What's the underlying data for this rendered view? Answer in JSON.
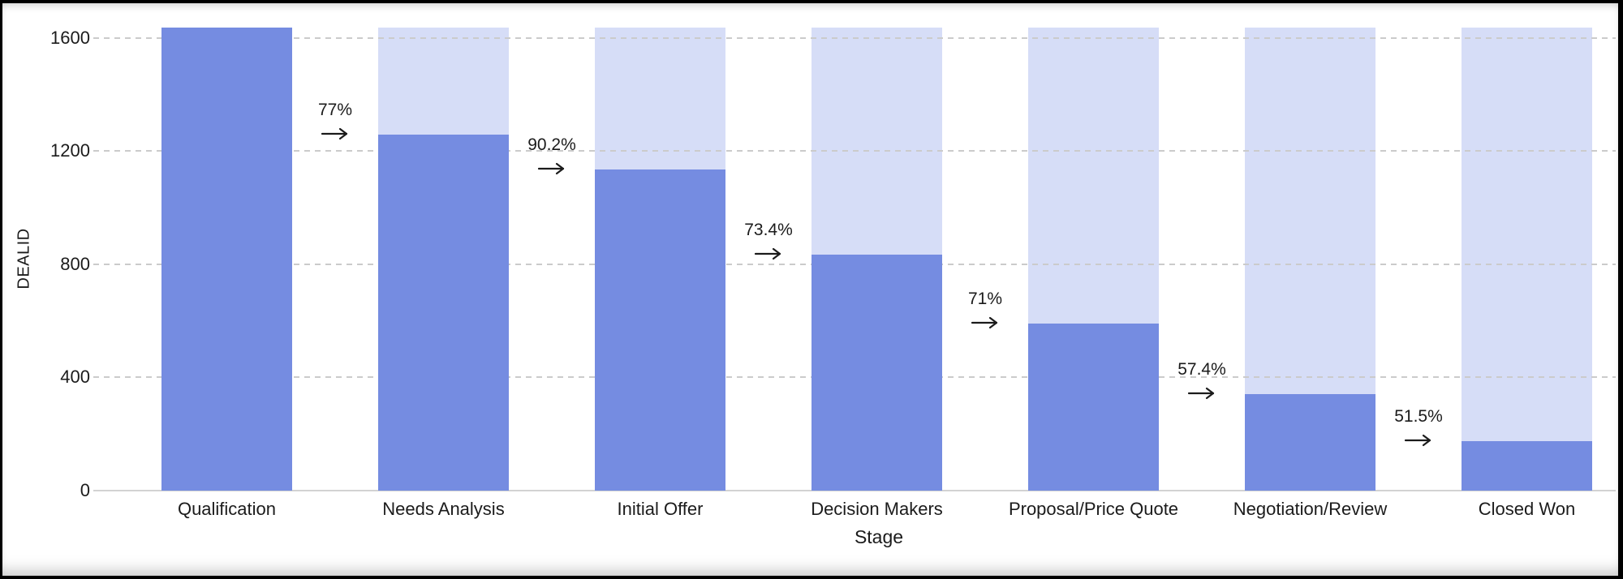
{
  "chart_data": {
    "type": "bar",
    "subtype": "funnel",
    "title": "",
    "xlabel": "Stage",
    "ylabel": "DEALID",
    "categories": [
      "Qualification",
      "Needs Analysis",
      "Initial Offer",
      "Decision Makers",
      "Proposal/Price Quote",
      "Negotiation/Review",
      "Closed Won"
    ],
    "values": [
      1637,
      1260,
      1136,
      834,
      592,
      340,
      175
    ],
    "background_max": 1637,
    "conversion_labels": [
      "77%",
      "90.2%",
      "73.4%",
      "71%",
      "57.4%",
      "51.5%"
    ],
    "arrow_glyph": "→",
    "yticks": [
      "0",
      "400",
      "800",
      "1200",
      "1600"
    ],
    "ytick_values": [
      0,
      400,
      800,
      1200,
      1600
    ],
    "ylim": [
      0,
      1648
    ],
    "grid": "horizontal-dashed",
    "legend": "none",
    "colors": {
      "bar": "#758CE1",
      "bar_background": "#D6DDF7",
      "gridline": "#CBCBCB",
      "axis_line": "#D2D2D2",
      "text": "#1B1B1B"
    }
  }
}
